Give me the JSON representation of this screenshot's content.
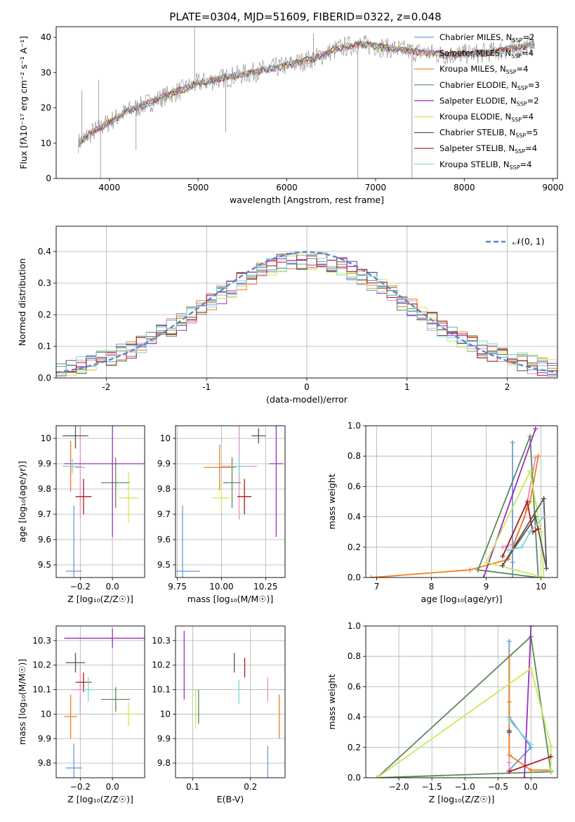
{
  "figure_title": "PLATE=0304, MJD=51609, FIBERID=0322, z=0.048",
  "model_colors": [
    "#6a9bd8",
    "#e48fc6",
    "#f07f1f",
    "#5a8a5a",
    "#9a2fc0",
    "#cbe85a",
    "#555555",
    "#aa1a1a",
    "#7fd6da"
  ],
  "chart_data": [
    {
      "id": "spectrum",
      "type": "line",
      "title": "PLATE=0304, MJD=51609, FIBERID=0322, z=0.048",
      "xlabel": "wavelength [Angstrom, rest frame]",
      "ylabel": "Flux [fλ10⁻¹⁷ erg cm⁻² s⁻¹ A⁻¹]",
      "xlim": [
        3400,
        9050
      ],
      "ylim": [
        0,
        43
      ],
      "xticks": [
        4000,
        5000,
        6000,
        7000,
        8000,
        9000
      ],
      "yticks": [
        0,
        10,
        20,
        30,
        40
      ],
      "grid": false,
      "legend_position": "right",
      "legend": [
        {
          "label": "Chabrier MILES, N",
          "sub": "SSP",
          "tail": "=2"
        },
        {
          "label": "Salpeter MILES, N",
          "sub": "SSP",
          "tail": "=4"
        },
        {
          "label": "Kroupa MILES, N",
          "sub": "SSP",
          "tail": "=4"
        },
        {
          "label": "Chabrier ELODIE, N",
          "sub": "SSP",
          "tail": "=3"
        },
        {
          "label": "Salpeter ELODIE, N",
          "sub": "SSP",
          "tail": "=2"
        },
        {
          "label": "Kroupa ELODIE, N",
          "sub": "SSP",
          "tail": "=4"
        },
        {
          "label": "Chabrier STELIB, N",
          "sub": "SSP",
          "tail": "=5"
        },
        {
          "label": "Salpeter STELIB, N",
          "sub": "SSP",
          "tail": "=4"
        },
        {
          "label": "Kroupa STELIB, N",
          "sub": "SSP",
          "tail": "=4"
        }
      ],
      "continuum": {
        "x": [
          3650,
          3800,
          4000,
          4200,
          4500,
          4800,
          5000,
          5200,
          5500,
          5800,
          6000,
          6300,
          6600,
          6800,
          7000,
          7400,
          7800,
          8200,
          8600,
          8800
        ],
        "y": [
          10,
          13,
          16,
          19,
          22,
          25,
          27,
          28,
          29.5,
          31,
          32,
          34,
          37,
          38,
          37.5,
          36,
          35,
          35.5,
          37,
          38
        ]
      },
      "spikes": [
        {
          "x": 3690,
          "y": 25
        },
        {
          "x": 3880,
          "y": 28
        },
        {
          "x": 4960,
          "y": 43
        },
        {
          "x": 6300,
          "y": 41
        },
        {
          "x": 3900,
          "y": 0
        },
        {
          "x": 4300,
          "y": 8
        },
        {
          "x": 5310,
          "y": 13
        },
        {
          "x": 6800,
          "y": 0
        },
        {
          "x": 7410,
          "y": 0
        }
      ]
    },
    {
      "id": "residuals",
      "type": "histogram",
      "xlabel": "(data-model)/error",
      "ylabel": "Normed distribution",
      "xlim": [
        -2.5,
        2.5
      ],
      "ylim": [
        0,
        0.48
      ],
      "xticks": [
        -2,
        -1,
        0,
        1,
        2
      ],
      "yticks": [
        0.0,
        0.1,
        0.2,
        0.3,
        0.4
      ],
      "grid": true,
      "legend_position": "top-right",
      "reference_curve": {
        "label": "𝒩(0, 1)",
        "mean": 0,
        "sigma": 1
      }
    },
    {
      "id": "age-vs-Z",
      "type": "errorbar",
      "xlabel": "Z [log₁₀(Z/Z☉)]",
      "ylabel": "age  [log₁₀(age/yr)]",
      "xlim": [
        -0.35,
        0.2
      ],
      "ylim": [
        9.45,
        10.05
      ],
      "xticks": [
        -0.2,
        0.0
      ],
      "xticklabels": [
        "−0.2",
        "0.0"
      ],
      "yticks": [
        9.5,
        9.6,
        9.7,
        9.8,
        9.9,
        10.0
      ],
      "grid": true,
      "points": [
        {
          "x": -0.24,
          "y": 9.475,
          "xerr": 0.05,
          "yerr": 0.26
        },
        {
          "x": -0.2,
          "y": 9.885,
          "xerr": 0.03,
          "yerr": 0.2
        },
        {
          "x": -0.26,
          "y": 9.89,
          "xerr": 0.05,
          "yerr": 0.1
        },
        {
          "x": 0.02,
          "y": 9.825,
          "xerr": 0.09,
          "yerr": 0.1
        },
        {
          "x": 0.0,
          "y": 9.9,
          "xerr": 0.3,
          "yerr": 0.29
        },
        {
          "x": 0.1,
          "y": 9.765,
          "xerr": 0.06,
          "yerr": 0.1
        },
        {
          "x": -0.23,
          "y": 10.01,
          "xerr": 0.08,
          "yerr": 0.05
        },
        {
          "x": -0.18,
          "y": 9.77,
          "xerr": 0.05,
          "yerr": 0.07
        },
        {
          "x": -0.25,
          "y": 9.89,
          "xerr": 0.06,
          "yerr": 0.03
        }
      ]
    },
    {
      "id": "age-vs-mass",
      "type": "errorbar",
      "xlabel": "mass [log₁₀(M/M☉)]",
      "ylabel": "",
      "xlim": [
        9.74,
        10.36
      ],
      "ylim": [
        9.45,
        10.05
      ],
      "xticks": [
        9.75,
        10.0,
        10.25
      ],
      "xticklabels": [
        "9.75",
        "10.00",
        "10.25"
      ],
      "yticks": [
        9.5,
        9.6,
        9.7,
        9.8,
        9.9,
        10.0
      ],
      "grid": true,
      "points": [
        {
          "x": 9.78,
          "y": 9.475,
          "xerr": 0.1,
          "yerr": 0.26
        },
        {
          "x": 10.1,
          "y": 9.89,
          "xerr": 0.1,
          "yerr": 0.21
        },
        {
          "x": 9.99,
          "y": 9.885,
          "xerr": 0.09,
          "yerr": 0.09
        },
        {
          "x": 10.06,
          "y": 9.825,
          "xerr": 0.05,
          "yerr": 0.1
        },
        {
          "x": 10.31,
          "y": 9.9,
          "xerr": 0.04,
          "yerr": 0.29
        },
        {
          "x": 10.0,
          "y": 9.765,
          "xerr": 0.05,
          "yerr": 0.06
        },
        {
          "x": 10.21,
          "y": 10.01,
          "xerr": 0.04,
          "yerr": 0.03
        },
        {
          "x": 10.13,
          "y": 9.77,
          "xerr": 0.04,
          "yerr": 0.07
        },
        {
          "x": 10.1,
          "y": 9.89,
          "xerr": 0.05,
          "yerr": 0.04
        }
      ]
    },
    {
      "id": "weight-vs-age",
      "type": "line",
      "xlabel": "age  [log₁₀(age/yr)]",
      "ylabel": "mass weight",
      "xlim": [
        6.8,
        10.3
      ],
      "ylim": [
        0,
        1
      ],
      "xticks": [
        7,
        8,
        9,
        10
      ],
      "yticks": [
        0.0,
        0.2,
        0.4,
        0.6,
        0.8,
        1.0
      ],
      "grid": true,
      "series": [
        {
          "x": [
            9.48,
            9.48,
            9.48
          ],
          "y": [
            0.0,
            0.1,
            0.89
          ]
        },
        {
          "x": [
            9.3,
            9.5,
            9.7,
            9.9
          ],
          "y": [
            0.2,
            0.22,
            0.4,
            0.79
          ]
        },
        {
          "x": [
            6.9,
            8.7,
            9.4,
            9.8,
            9.95
          ],
          "y": [
            0.0,
            0.05,
            0.12,
            0.5,
            0.8
          ]
        },
        {
          "x": [
            8.85,
            9.8,
            9.95,
            8.85
          ],
          "y": [
            0.05,
            0.93,
            0.0,
            0.05
          ]
        },
        {
          "x": [
            8.95,
            9.9
          ],
          "y": [
            0.0,
            0.98
          ]
        },
        {
          "x": [
            9.0,
            9.8,
            10.0,
            10.05,
            9.0
          ],
          "y": [
            0.1,
            0.7,
            0.3,
            0.0,
            0.1
          ]
        },
        {
          "x": [
            9.3,
            10.05,
            10.1,
            9.9,
            9.3
          ],
          "y": [
            0.08,
            0.52,
            0.06,
            0.4,
            0.08
          ]
        },
        {
          "x": [
            9.3,
            9.75,
            9.85,
            9.95
          ],
          "y": [
            0.14,
            0.5,
            0.3,
            0.32
          ]
        },
        {
          "x": [
            9.4,
            9.65,
            9.8,
            10.05
          ],
          "y": [
            0.18,
            0.2,
            0.3,
            0.4
          ]
        }
      ]
    },
    {
      "id": "mass-vs-Z",
      "type": "errorbar",
      "xlabel": "Z [log₁₀(Z/Z☉)]",
      "ylabel": "mass [log₁₀(M/M☉)]",
      "xlim": [
        -0.35,
        0.2
      ],
      "ylim": [
        9.74,
        10.36
      ],
      "xticks": [
        -0.2,
        0.0
      ],
      "xticklabels": [
        "−0.2",
        "0.0"
      ],
      "yticks": [
        9.8,
        9.9,
        10.0,
        10.1,
        10.2,
        10.3
      ],
      "grid": true,
      "points": [
        {
          "x": -0.24,
          "y": 9.78,
          "xerr": 0.05,
          "yerr": 0.1
        },
        {
          "x": -0.2,
          "y": 10.1,
          "xerr": 0.05,
          "yerr": 0.1
        },
        {
          "x": -0.26,
          "y": 9.99,
          "xerr": 0.04,
          "yerr": 0.09
        },
        {
          "x": 0.02,
          "y": 10.06,
          "xerr": 0.09,
          "yerr": 0.05
        },
        {
          "x": 0.0,
          "y": 10.31,
          "xerr": 0.3,
          "yerr": 0.04
        },
        {
          "x": 0.1,
          "y": 10.0,
          "xerr": 0.06,
          "yerr": 0.05
        },
        {
          "x": -0.23,
          "y": 10.21,
          "xerr": 0.06,
          "yerr": 0.04
        },
        {
          "x": -0.18,
          "y": 10.13,
          "xerr": 0.05,
          "yerr": 0.04
        },
        {
          "x": -0.15,
          "y": 10.1,
          "xerr": 0.04,
          "yerr": 0.05
        }
      ]
    },
    {
      "id": "mass-vs-ebv",
      "type": "errorbar",
      "xlabel": "E(B-V)",
      "ylabel": "",
      "xlim": [
        0.07,
        0.26
      ],
      "ylim": [
        9.74,
        10.36
      ],
      "xticks": [
        0.1,
        0.2
      ],
      "xticklabels": [
        "0.1",
        "0.2"
      ],
      "yticks": [
        9.8,
        9.9,
        10.0,
        10.1,
        10.2,
        10.3
      ],
      "grid": true,
      "points": [
        {
          "x": 0.23,
          "y": 9.78,
          "xerr": 0.0,
          "yerr": 0.09
        },
        {
          "x": 0.23,
          "y": 10.1,
          "xerr": 0.0,
          "yerr": 0.05
        },
        {
          "x": 0.25,
          "y": 9.99,
          "xerr": 0.0,
          "yerr": 0.09
        },
        {
          "x": 0.11,
          "y": 10.03,
          "xerr": 0.0,
          "yerr": 0.07
        },
        {
          "x": 0.085,
          "y": 10.2,
          "xerr": 0.0,
          "yerr": 0.14
        },
        {
          "x": 0.105,
          "y": 10.02,
          "xerr": 0.0,
          "yerr": 0.08
        },
        {
          "x": 0.172,
          "y": 10.21,
          "xerr": 0.0,
          "yerr": 0.04
        },
        {
          "x": 0.19,
          "y": 10.19,
          "xerr": 0.0,
          "yerr": 0.04
        },
        {
          "x": 0.18,
          "y": 10.09,
          "xerr": 0.0,
          "yerr": 0.05
        }
      ]
    },
    {
      "id": "weight-vs-Z",
      "type": "line",
      "xlabel": "Z [log₁₀(Z/Z☉)]",
      "ylabel": "mass weight",
      "xlim": [
        -2.5,
        0.4
      ],
      "ylim": [
        0,
        1
      ],
      "xticks": [
        -2.0,
        -1.5,
        -1.0,
        -0.5,
        0.0
      ],
      "xticklabels": [
        "−2.0",
        "−1.5",
        "−1.0",
        "−0.5",
        "0.0"
      ],
      "yticks": [
        0.0,
        0.2,
        0.4,
        0.6,
        0.8,
        1.0
      ],
      "grid": true,
      "series": [
        {
          "x": [
            -0.33,
            -0.33,
            0.0,
            -0.33
          ],
          "y": [
            0.9,
            0.4,
            0.2,
            0.05
          ]
        },
        {
          "x": [
            -0.33,
            -0.33,
            -0.33
          ],
          "y": [
            0.3,
            0.1,
            0.05
          ]
        },
        {
          "x": [
            -0.33,
            -0.33,
            -0.33,
            0.0,
            0.3
          ],
          "y": [
            0.8,
            0.5,
            0.15,
            0.05,
            0.05
          ]
        },
        {
          "x": [
            -2.33,
            0.0,
            0.3,
            -2.33
          ],
          "y": [
            0.0,
            0.93,
            0.04,
            0.0
          ]
        },
        {
          "x": [
            0.0,
            -0.1,
            0.0
          ],
          "y": [
            1.0,
            0.0,
            1.0
          ]
        },
        {
          "x": [
            -2.33,
            0.0,
            0.3,
            0.3
          ],
          "y": [
            0.0,
            0.72,
            0.21,
            0.05
          ]
        },
        {
          "x": [
            -0.33,
            -0.33
          ],
          "y": [
            0.31,
            0.3
          ]
        },
        {
          "x": [
            -0.33,
            0.3
          ],
          "y": [
            0.04,
            0.14
          ]
        },
        {
          "x": [
            -0.33,
            0.0
          ],
          "y": [
            0.38,
            0.22
          ]
        }
      ]
    }
  ]
}
